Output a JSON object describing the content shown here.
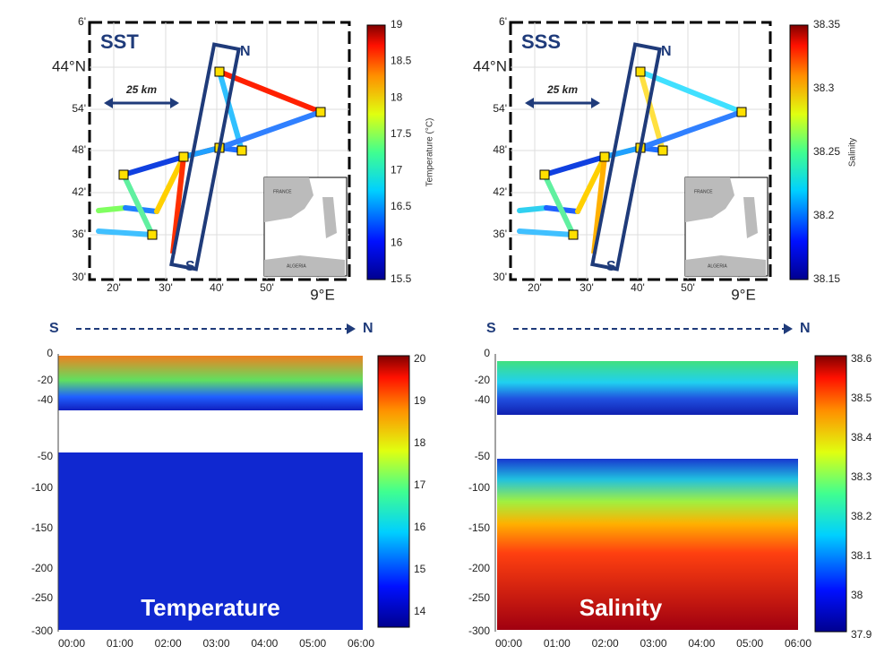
{
  "maps": [
    {
      "label": "SST",
      "north": "N",
      "south": "S",
      "scale": "25 km",
      "lat_ticks": [
        "6'",
        "44°N",
        "54'",
        "48'",
        "42'",
        "36'",
        "30'"
      ],
      "lon_ticks": [
        "20'",
        "30'",
        "40'",
        "50'",
        "9°E"
      ],
      "inset": [
        "FRANCE",
        "ALGERIA"
      ],
      "colorbar": {
        "title": "Temperature (°C)",
        "ticks": [
          "19",
          "18.5",
          "18",
          "17.5",
          "17",
          "16.5",
          "16",
          "15.5"
        ]
      }
    },
    {
      "label": "SSS",
      "north": "N",
      "south": "S",
      "scale": "25 km",
      "lat_ticks": [
        "6'",
        "44°N",
        "54'",
        "48'",
        "42'",
        "36'",
        "30'"
      ],
      "lon_ticks": [
        "20'",
        "30'",
        "40'",
        "50'",
        "9°E"
      ],
      "inset": [
        "FRANCE",
        "ALGERIA"
      ],
      "colorbar": {
        "title": "Salinity",
        "ticks": [
          "38.35",
          "38.3",
          "38.25",
          "38.2",
          "38.15"
        ]
      }
    }
  ],
  "sections": [
    {
      "start": "S",
      "end": "N",
      "label": "Temperature",
      "depth_ticks_upper": [
        "0",
        "-20",
        "-40"
      ],
      "depth_ticks_lower": [
        "-50",
        "-100",
        "-150",
        "-200",
        "-250",
        "-300"
      ],
      "time_ticks": [
        "00:00",
        "01:00",
        "02:00",
        "03:00",
        "04:00",
        "05:00",
        "06:00"
      ],
      "colorbar_ticks": [
        "20",
        "19",
        "18",
        "17",
        "16",
        "15",
        "14"
      ]
    },
    {
      "start": "S",
      "end": "N",
      "label": "Salinity",
      "depth_ticks_upper": [
        "0",
        "-20",
        "-40"
      ],
      "depth_ticks_lower": [
        "-50",
        "-100",
        "-150",
        "-200",
        "-250",
        "-300"
      ],
      "time_ticks": [
        "00:00",
        "01:00",
        "02:00",
        "03:00",
        "04:00",
        "05:00",
        "06:00"
      ],
      "colorbar_ticks": [
        "38.6",
        "38.5",
        "38.4",
        "38.3",
        "38.2",
        "38.1",
        "38",
        "37.9"
      ]
    }
  ]
}
